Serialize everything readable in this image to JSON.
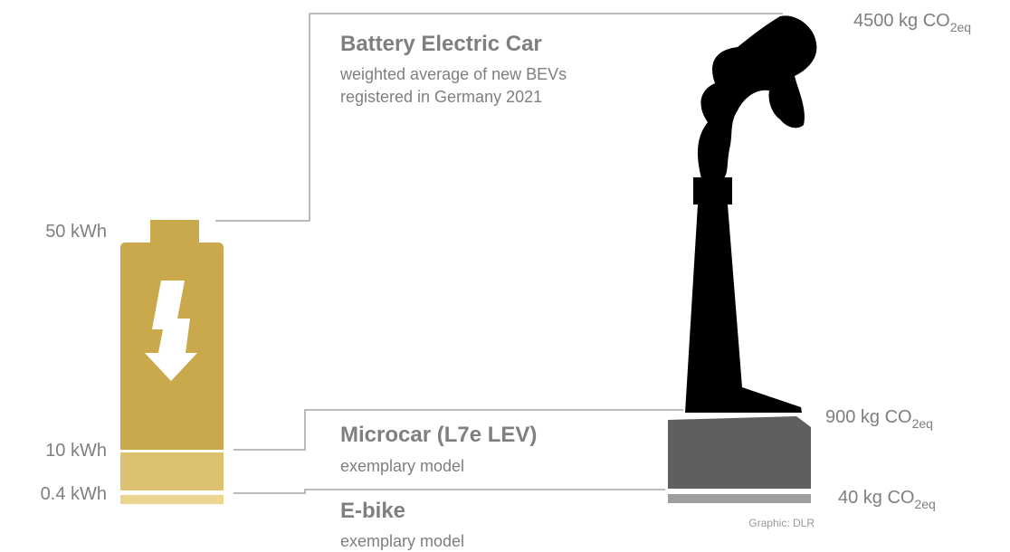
{
  "battery_labels": [
    "50 kWh",
    "10 kWh",
    "0.4 kWh"
  ],
  "emission_labels": [
    {
      "text": "4500 kg CO",
      "sub": "2eq"
    },
    {
      "text": "900 kg CO",
      "sub": "2eq"
    },
    {
      "text": "40 kg CO",
      "sub": "2eq"
    }
  ],
  "vehicles": [
    {
      "name": "Battery Electric Car",
      "description": [
        "weighted average of new BEVs",
        "registered in Germany 2021"
      ]
    },
    {
      "name": "Microcar (L7e LEV)",
      "description": [
        "exemplary model"
      ]
    },
    {
      "name": "E-bike",
      "description": [
        "exemplary model"
      ]
    }
  ],
  "credit": "Graphic: DLR"
}
